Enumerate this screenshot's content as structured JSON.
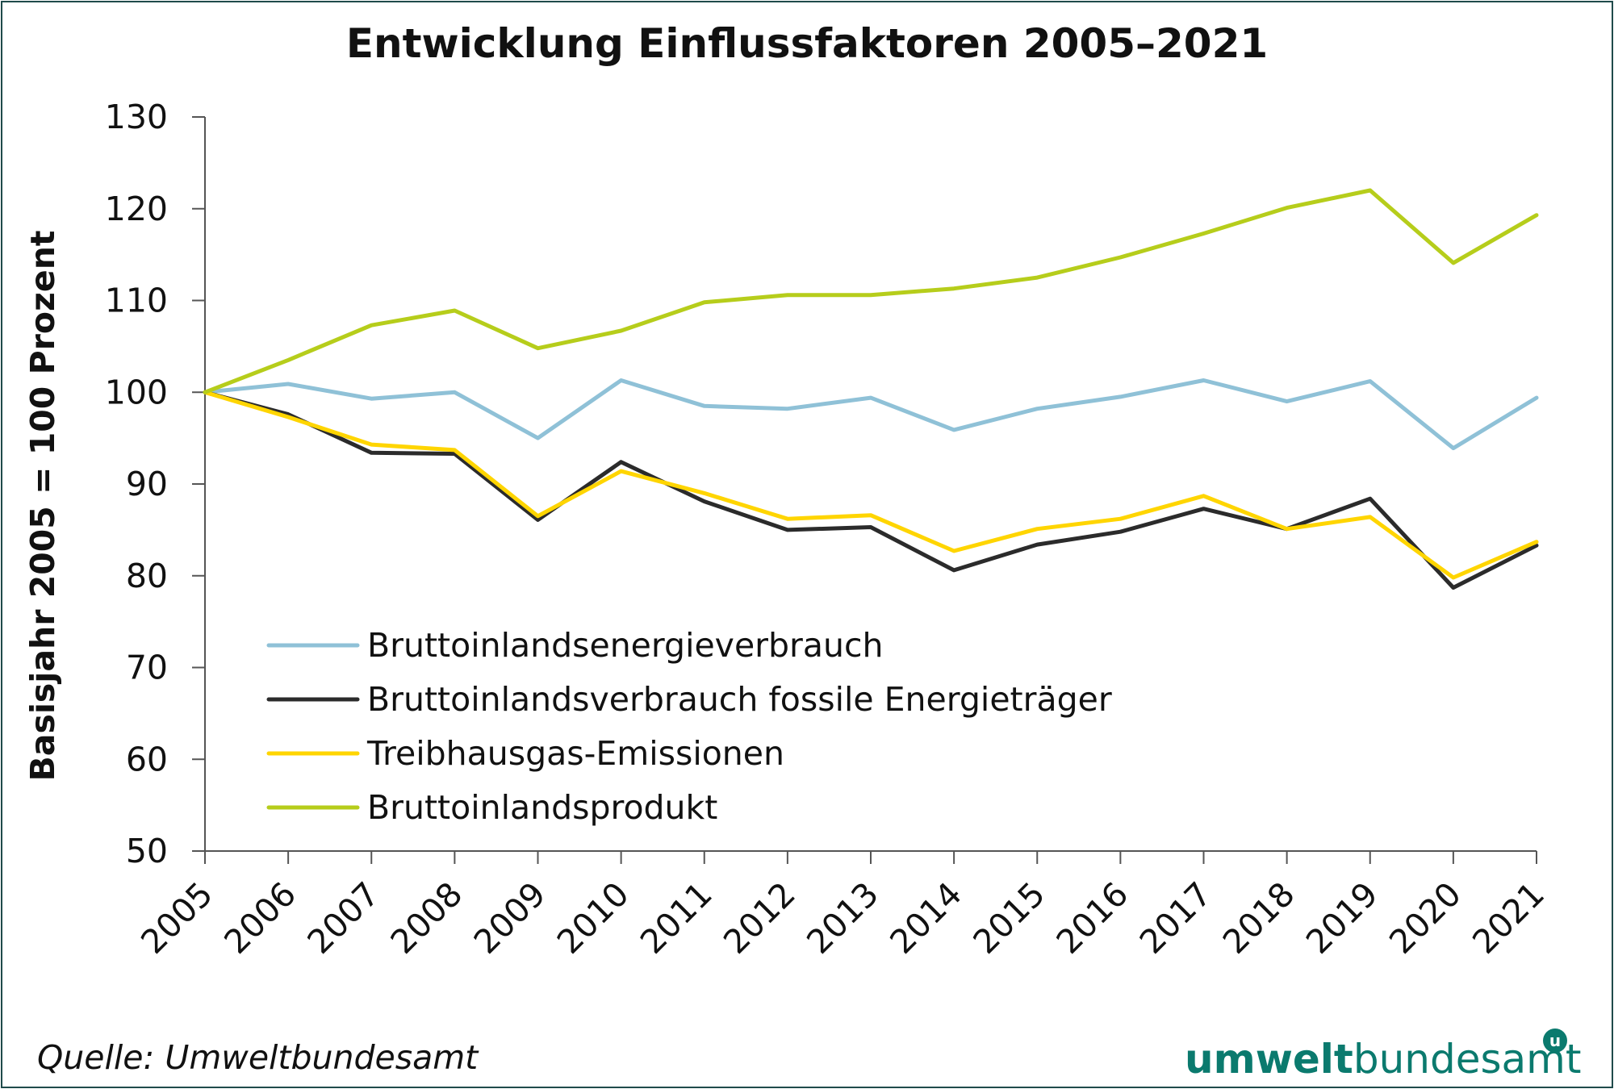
{
  "source": "Quelle: Umweltbundesamt",
  "logo": {
    "bold": "umwelt",
    "light": "bundesamt",
    "mark": "u",
    "color": "#0b7a6e"
  },
  "chart_data": {
    "type": "line",
    "title": "Entwicklung Einflussfaktoren 2005–2021",
    "xlabel": "",
    "ylabel": "Basisjahr 2005 = 100 Prozent",
    "ylim": [
      50,
      130
    ],
    "yticks": [
      50,
      60,
      70,
      80,
      90,
      100,
      110,
      120,
      130
    ],
    "grid": false,
    "legend_position": "bottom-left",
    "categories": [
      "2005",
      "2006",
      "2007",
      "2008",
      "2009",
      "2010",
      "2011",
      "2012",
      "2013",
      "2014",
      "2015",
      "2016",
      "2017",
      "2018",
      "2019",
      "2020",
      "2021"
    ],
    "series": [
      {
        "name": "Bruttoinlandsenergieverbrauch",
        "color": "#8fc1d7",
        "values": [
          100,
          100.9,
          99.3,
          100.0,
          95.0,
          101.3,
          98.5,
          98.2,
          99.4,
          95.9,
          98.2,
          99.5,
          101.3,
          99.0,
          101.2,
          93.9,
          99.4
        ]
      },
      {
        "name": "Bruttoinlandsverbrauch fossile Energieträger",
        "color": "#2b2b2b",
        "values": [
          100,
          97.6,
          93.4,
          93.3,
          86.1,
          92.4,
          88.1,
          85.0,
          85.3,
          80.6,
          83.4,
          84.8,
          87.3,
          85.1,
          88.4,
          78.7,
          83.3
        ]
      },
      {
        "name": "Treibhausgas-Emissionen",
        "color": "#ffd500",
        "values": [
          100,
          97.3,
          94.3,
          93.7,
          86.5,
          91.4,
          89.0,
          86.2,
          86.6,
          82.7,
          85.1,
          86.2,
          88.7,
          85.1,
          86.4,
          79.8,
          83.7
        ]
      },
      {
        "name": "Bruttoinlandsprodukt",
        "color": "#b6cd1b",
        "values": [
          100,
          103.5,
          107.3,
          108.9,
          104.8,
          106.7,
          109.8,
          110.6,
          110.6,
          111.3,
          112.5,
          114.7,
          117.3,
          120.1,
          122.0,
          114.1,
          119.3
        ]
      }
    ]
  }
}
